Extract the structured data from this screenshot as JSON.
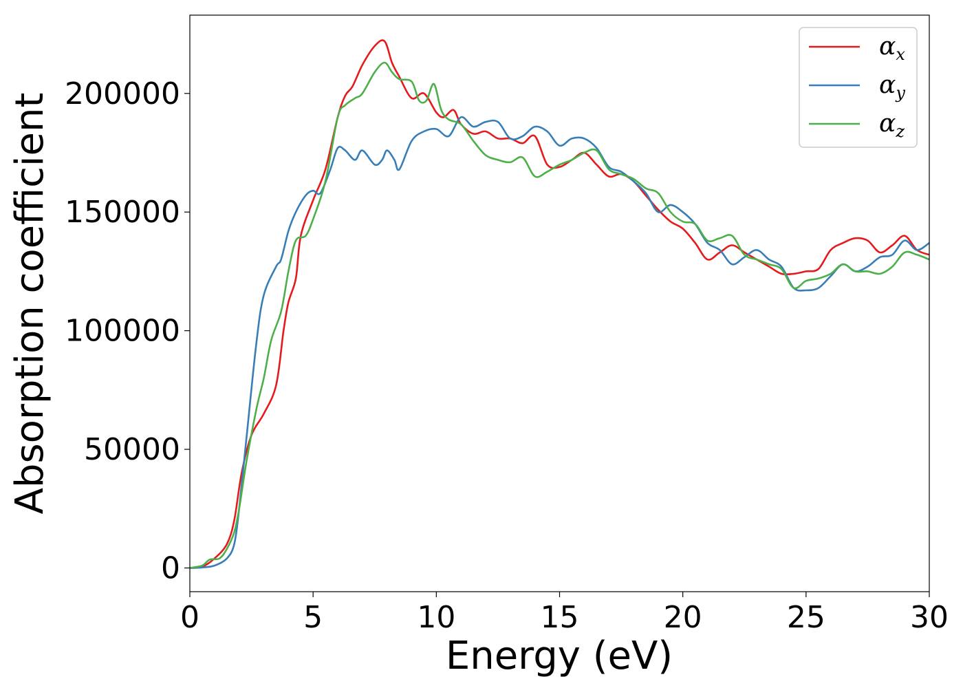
{
  "chart_data": {
    "type": "line",
    "xlabel": "Energy (eV)",
    "ylabel": "Absorption coefficient",
    "xlim": [
      0,
      30
    ],
    "ylim": [
      -10000,
      233000
    ],
    "xticks": [
      0,
      5,
      10,
      15,
      20,
      25,
      30
    ],
    "xtick_labels": [
      "0",
      "5",
      "10",
      "15",
      "20",
      "25",
      "30"
    ],
    "yticks": [
      0,
      50000,
      100000,
      150000,
      200000
    ],
    "ytick_labels": [
      "0",
      "50000",
      "100000",
      "150000",
      "200000"
    ],
    "grid": false,
    "legend": "top-right",
    "series": [
      {
        "name": "α_x",
        "label_base": "α",
        "label_sub": "x",
        "color": "#e41a1c",
        "x": [
          0,
          0.5,
          1,
          1.5,
          1.8,
          2.1,
          2.5,
          3.0,
          3.5,
          3.8,
          4.0,
          4.3,
          4.5,
          5.0,
          5.5,
          6.0,
          6.3,
          6.6,
          7.0,
          7.5,
          7.9,
          8.2,
          8.5,
          9.0,
          9.5,
          10.0,
          10.3,
          10.7,
          11.0,
          11.5,
          12.0,
          12.5,
          13.0,
          13.5,
          14.0,
          14.5,
          15.0,
          15.5,
          16.0,
          16.5,
          17.0,
          17.5,
          18.0,
          18.5,
          19.0,
          19.5,
          20.0,
          20.5,
          21.0,
          21.5,
          22.0,
          22.5,
          23.0,
          23.5,
          24.0,
          24.5,
          25.0,
          25.5,
          26.0,
          26.5,
          27.0,
          27.5,
          28.0,
          28.5,
          29.0,
          29.5,
          30.0
        ],
        "y": [
          0,
          500,
          4000,
          10000,
          20000,
          40000,
          56000,
          65000,
          77000,
          100000,
          112000,
          122000,
          140000,
          155000,
          168000,
          190000,
          199000,
          203000,
          212000,
          220000,
          222000,
          213000,
          207000,
          198000,
          200000,
          192000,
          190000,
          193000,
          187000,
          183000,
          184000,
          181000,
          181000,
          179000,
          182000,
          170000,
          169000,
          172000,
          175000,
          170000,
          165000,
          166000,
          163000,
          157000,
          151000,
          146000,
          143000,
          137000,
          130000,
          133000,
          136000,
          133000,
          130000,
          127000,
          124000,
          124000,
          125000,
          126000,
          134000,
          137000,
          139000,
          138000,
          133000,
          136000,
          140000,
          134000,
          132000
        ]
      },
      {
        "name": "α_y",
        "label_base": "α",
        "label_sub": "y",
        "color": "#377eb8",
        "x": [
          0,
          0.5,
          1,
          1.5,
          1.8,
          2.0,
          2.3,
          2.7,
          3.0,
          3.5,
          3.7,
          4.0,
          4.3,
          4.7,
          5.0,
          5.3,
          5.7,
          6.0,
          6.3,
          6.7,
          7.0,
          7.5,
          7.8,
          8.0,
          8.3,
          8.5,
          9.0,
          9.5,
          10.0,
          10.5,
          11.0,
          11.5,
          12.0,
          12.5,
          13.0,
          13.5,
          14.0,
          14.5,
          15.0,
          15.5,
          16.0,
          16.5,
          17.0,
          17.5,
          18.0,
          18.5,
          19.0,
          19.5,
          20.0,
          20.5,
          21.0,
          21.5,
          22.0,
          22.5,
          23.0,
          23.5,
          24.0,
          24.5,
          25.0,
          25.5,
          26.0,
          26.5,
          27.0,
          27.5,
          28.0,
          28.5,
          29.0,
          29.5,
          30.0
        ],
        "y": [
          0,
          200,
          1000,
          4000,
          10000,
          25000,
          55000,
          95000,
          115000,
          127000,
          130000,
          142000,
          150000,
          157000,
          159000,
          158000,
          168000,
          177000,
          176000,
          172000,
          176000,
          170000,
          172000,
          176000,
          172000,
          168000,
          180000,
          184000,
          185000,
          182000,
          190000,
          186000,
          188000,
          188000,
          181000,
          182000,
          186000,
          184000,
          178000,
          181000,
          181000,
          177000,
          169000,
          167000,
          163000,
          158000,
          150000,
          153000,
          150000,
          145000,
          137000,
          134000,
          128000,
          131000,
          134000,
          130000,
          127000,
          118000,
          117000,
          118000,
          123000,
          128000,
          125000,
          127000,
          131000,
          132000,
          138000,
          134000,
          137000
        ]
      },
      {
        "name": "α_z",
        "label_base": "α",
        "label_sub": "z",
        "color": "#4daf4a",
        "x": [
          0,
          0.5,
          0.8,
          1.2,
          1.5,
          1.8,
          2.0,
          2.3,
          2.7,
          3.0,
          3.3,
          3.7,
          4.0,
          4.3,
          4.7,
          5.0,
          5.5,
          6.0,
          6.3,
          6.7,
          7.0,
          7.5,
          7.9,
          8.2,
          8.5,
          9.0,
          9.3,
          9.6,
          9.9,
          10.2,
          10.5,
          11.0,
          11.5,
          12.0,
          12.5,
          13.0,
          13.5,
          14.0,
          14.5,
          15.0,
          15.5,
          16.0,
          16.5,
          17.0,
          17.5,
          18.0,
          18.5,
          19.0,
          19.5,
          20.0,
          20.5,
          21.0,
          21.5,
          22.0,
          22.5,
          23.0,
          23.5,
          24.0,
          24.5,
          25.0,
          25.5,
          26.0,
          26.5,
          27.0,
          27.5,
          28.0,
          28.5,
          29.0,
          29.5,
          30.0
        ],
        "y": [
          0,
          1000,
          3500,
          4000,
          8000,
          15000,
          25000,
          45000,
          67000,
          80000,
          96000,
          108000,
          125000,
          138000,
          140000,
          147000,
          163000,
          190000,
          195000,
          198000,
          200000,
          209000,
          213000,
          209000,
          206000,
          205000,
          197000,
          197000,
          204000,
          193000,
          189000,
          187000,
          180000,
          174000,
          172000,
          171000,
          173000,
          165000,
          167000,
          170000,
          172000,
          175000,
          176000,
          168000,
          166000,
          164000,
          160000,
          158000,
          150000,
          146000,
          145000,
          138000,
          139000,
          140000,
          132000,
          130000,
          128000,
          126000,
          118000,
          121000,
          122000,
          124000,
          128000,
          125000,
          125000,
          124000,
          127000,
          133000,
          132000,
          130000
        ]
      }
    ]
  }
}
